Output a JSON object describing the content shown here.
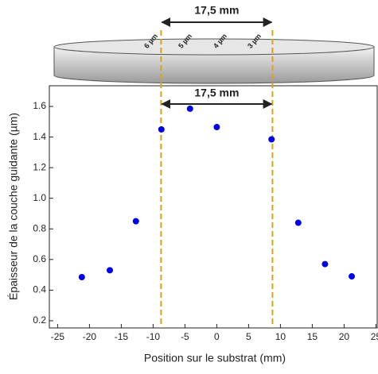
{
  "chart_data": {
    "type": "scatter",
    "xlabel": "Position sur le substrat (mm)",
    "ylabel": "Épaisseur de la couche guidante (µm)",
    "x": [
      -21.2,
      -16.8,
      -12.7,
      -8.7,
      -4.2,
      0,
      8.6,
      12.8,
      17,
      21.2
    ],
    "values": [
      0.485,
      0.53,
      0.85,
      1.45,
      1.585,
      1.465,
      1.385,
      0.84,
      0.57,
      0.49
    ],
    "color": "#0000ee",
    "xlim": [
      -26.3,
      25.2
    ],
    "ylim": [
      0.153,
      1.735
    ],
    "xticks": [
      -25,
      -20,
      -15,
      -10,
      -5,
      0,
      5,
      10,
      15,
      20,
      25
    ],
    "yticks": [
      0.2,
      0.4,
      0.6,
      0.8,
      {
        "value": 1,
        "label": "1.0"
      },
      1.2,
      1.4,
      1.6
    ],
    "markers": [
      -8.75,
      8.75
    ],
    "marker_color": "#d9a21b",
    "span_label": "17,5 mm",
    "disk_labels": [
      {
        "text": "6 µm",
        "color": "#e01010"
      },
      {
        "text": "5 µm",
        "color": "#1a6fd0"
      },
      {
        "text": "4 µm",
        "color": "#1a6fd0"
      },
      {
        "text": "3 µm",
        "color": "#1a6fd0"
      }
    ]
  }
}
